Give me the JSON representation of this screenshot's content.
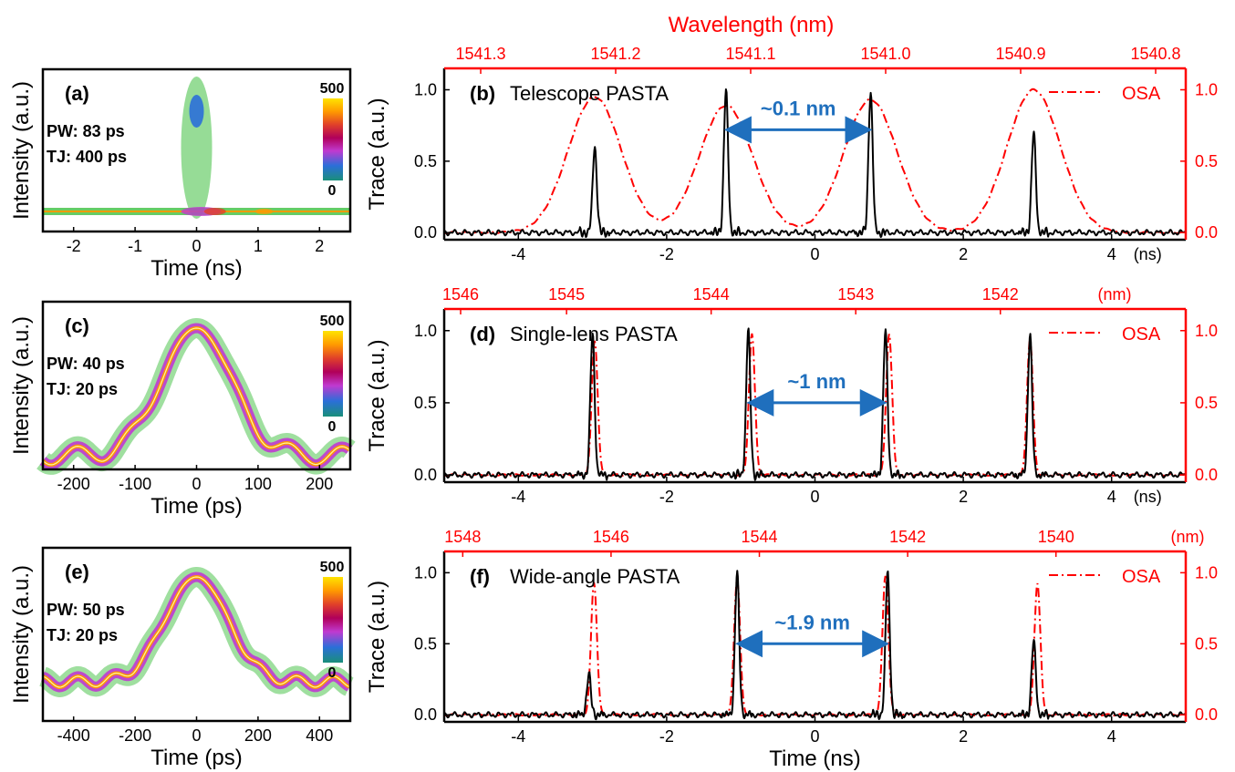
{
  "colors": {
    "trace": "#000000",
    "osa": "#ff0000",
    "arrow": "#1f6fbd",
    "colormap": [
      "#1a8f7a",
      "#2b6fd8",
      "#c03ad0",
      "#b0005a",
      "#e0402a",
      "#ff9a00",
      "#ffe400"
    ]
  },
  "chart_data": [
    {
      "id": "a",
      "type": "heatmap",
      "panel_label": "(a)",
      "pw": "PW:  83 ps",
      "tj": "TJ:  400 ps",
      "xlabel": "Time (ns)",
      "ylabel": "Intensity (a.u.)",
      "xlim": [
        -2.5,
        2.5
      ],
      "xticks": [
        -2,
        -1,
        0,
        1,
        2
      ],
      "colorbar": {
        "max": "500",
        "min": "0"
      }
    },
    {
      "id": "b",
      "type": "line",
      "panel_label": "(b)",
      "title": "Telescope PASTA",
      "ylabel": "Trace (a.u.)",
      "xlim": [
        -5,
        5
      ],
      "ylim": [
        -0.05,
        1.15
      ],
      "xticks": [
        "-4",
        "-2",
        "0",
        "2",
        "4"
      ],
      "x_unit": "(ns)",
      "yticks": [
        "0.0",
        "0.5",
        "1.0"
      ],
      "top_axis": {
        "label": "Wavelength (nm)",
        "ticks": [
          "1541.3",
          "1541.2",
          "1541.1",
          "1541.0",
          "1540.9",
          "1540.8"
        ]
      },
      "right_ticks": [
        "0.0",
        "0.5",
        "1.0"
      ],
      "legend": "OSA",
      "annotation": {
        "text": "~0.1 nm",
        "from": -1.2,
        "to": 0.75,
        "y": 0.72
      },
      "trace_peaks": [
        [
          -2.97,
          0.6
        ],
        [
          -1.2,
          1.0
        ],
        [
          0.75,
          0.99
        ],
        [
          2.95,
          0.7
        ]
      ],
      "osa_peaks": [
        [
          -2.97,
          0.95
        ],
        [
          -1.2,
          0.89
        ],
        [
          0.75,
          0.93
        ],
        [
          2.95,
          1.0
        ]
      ],
      "osa_width": 0.36
    },
    {
      "id": "c",
      "type": "heatmap",
      "panel_label": "(c)",
      "pw": "PW: 40 ps",
      "tj": "TJ:  20 ps",
      "xlabel": "Time (ps)",
      "ylabel": "Intensity (a.u.)",
      "xlim": [
        -250,
        250
      ],
      "xticks": [
        -200,
        -100,
        0,
        100,
        200
      ],
      "colorbar": {
        "max": "500",
        "min": "0"
      }
    },
    {
      "id": "d",
      "type": "line",
      "panel_label": "(d)",
      "title": "Single-lens PASTA",
      "ylabel": "Trace (a.u.)",
      "xlim": [
        -5,
        5
      ],
      "ylim": [
        -0.05,
        1.15
      ],
      "xticks": [
        "-4",
        "-2",
        "0",
        "2",
        "4"
      ],
      "x_unit": "(ns)",
      "yticks": [
        "0.0",
        "0.5",
        "1.0"
      ],
      "top_axis": {
        "label": "",
        "ticks": [
          "1546",
          "1545",
          "1544",
          "1543",
          "1542"
        ],
        "unit": "(nm)"
      },
      "right_ticks": [
        "0.0",
        "0.5",
        "1.0"
      ],
      "legend": "OSA",
      "annotation": {
        "text": "~1 nm",
        "from": -0.9,
        "to": 0.95,
        "y": 0.5
      },
      "trace_peaks": [
        [
          -3.0,
          0.98
        ],
        [
          -0.9,
          1.0
        ],
        [
          0.95,
          1.0
        ],
        [
          2.9,
          0.98
        ]
      ],
      "osa_peaks": [
        [
          -2.97,
          0.93
        ],
        [
          -0.85,
          0.98
        ],
        [
          1.0,
          0.98
        ],
        [
          2.9,
          0.94
        ]
      ],
      "osa_width": 0.04
    },
    {
      "id": "e",
      "type": "heatmap",
      "panel_label": "(e)",
      "pw": "PW: 50 ps",
      "tj": "TJ:  20 ps",
      "xlabel": "Time (ps)",
      "ylabel": "Intensity (a.u.)",
      "xlim": [
        -500,
        500
      ],
      "xticks": [
        -400,
        -200,
        0,
        200,
        400
      ],
      "colorbar": {
        "max": "500",
        "min": "0"
      }
    },
    {
      "id": "f",
      "type": "line",
      "panel_label": "(f)",
      "title": "Wide-angle PASTA",
      "xlabel": "Time (ns)",
      "ylabel": "Trace (a.u.)",
      "xlim": [
        -5,
        5
      ],
      "ylim": [
        -0.05,
        1.15
      ],
      "xticks": [
        "-4",
        "-2",
        "0",
        "2",
        "4"
      ],
      "x_unit": "",
      "yticks": [
        "0.0",
        "0.5",
        "1.0"
      ],
      "top_axis": {
        "label": "",
        "ticks": [
          "1548",
          "1546",
          "1544",
          "1542",
          "1540"
        ],
        "unit": "(nm)"
      },
      "right_ticks": [
        "0.0",
        "0.5",
        "1.0"
      ],
      "legend": "OSA",
      "annotation": {
        "text": "~1.9 nm",
        "from": -1.05,
        "to": 0.98,
        "y": 0.5
      },
      "trace_peaks": [
        [
          -3.05,
          0.28
        ],
        [
          -1.05,
          1.0
        ],
        [
          0.98,
          1.0
        ],
        [
          2.95,
          0.52
        ]
      ],
      "osa_peaks": [
        [
          -2.98,
          0.93
        ],
        [
          -1.05,
          0.96
        ],
        [
          0.95,
          0.98
        ],
        [
          3.0,
          0.93
        ]
      ],
      "osa_width": 0.04
    }
  ]
}
